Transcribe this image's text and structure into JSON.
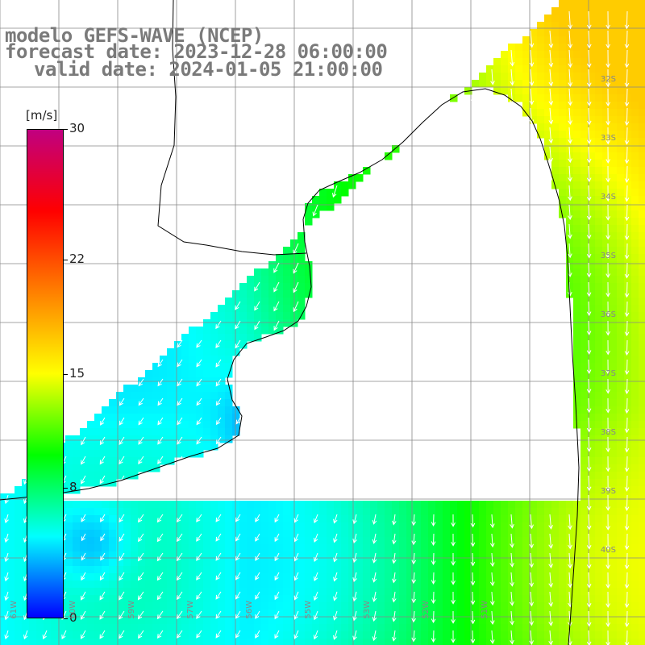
{
  "title": {
    "line1": "modelo GEFS-WAVE (NCEP)",
    "line2": "forecast date: 2023-12-28 06:00:00",
    "line3": "valid date: 2024-01-05 21:00:00"
  },
  "colorbar": {
    "unit": "[m/s]",
    "ticks": [
      "30",
      "22",
      "15",
      "8",
      "0"
    ],
    "tick_values": [
      30,
      22,
      15,
      8,
      0
    ],
    "range": [
      0,
      30
    ],
    "colors": [
      "#0000ff",
      "#00ffff",
      "#00ff00",
      "#ffff00",
      "#ff8000",
      "#ff0000",
      "#c00080"
    ]
  },
  "map": {
    "lon_range": [
      -61,
      -50
    ],
    "lat_range": [
      -41,
      -32
    ],
    "lat_labels": [
      "32S",
      "33S",
      "34S",
      "35S",
      "36S",
      "37S",
      "38S",
      "39S",
      "40S"
    ],
    "lon_labels": [
      "61W",
      "60W",
      "59W",
      "57W",
      "56W",
      "55W",
      "53W",
      "52W",
      "51W"
    ],
    "land_color": "#ffffff",
    "grid_color": "#888888",
    "coast_color": "#000000",
    "arrow_color": "#ffffff"
  }
}
